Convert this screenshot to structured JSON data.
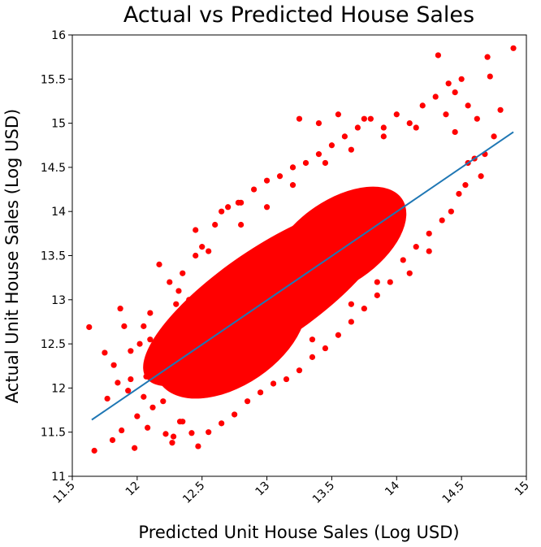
{
  "chart_data": {
    "type": "scatter",
    "title": "Actual vs Predicted House Sales",
    "xlabel": "Predicted Unit House Sales (Log USD)",
    "ylabel": "Actual Unit House Sales (Log USD)",
    "xlim": [
      11.5,
      15
    ],
    "ylim": [
      11,
      16
    ],
    "xticks": [
      "11.5",
      "12",
      "12.5",
      "13",
      "13.5",
      "14",
      "14.5",
      "15"
    ],
    "yticks": [
      "11",
      "11.5",
      "12",
      "12.5",
      "13",
      "13.5",
      "14",
      "14.5",
      "15",
      "15.5",
      "16"
    ],
    "x_tick_rotation": 45,
    "grid": false,
    "colors": {
      "points": "#ff0000",
      "fit_line": "#1f77b4"
    },
    "fit_line": {
      "x": [
        11.65,
        14.9
      ],
      "y": [
        11.64,
        14.9
      ]
    },
    "series": [
      {
        "points": [
          [
            11.63,
            12.69
          ],
          [
            11.67,
            11.29
          ],
          [
            11.75,
            12.4
          ],
          [
            11.77,
            11.88
          ],
          [
            11.81,
            11.41
          ],
          [
            11.82,
            12.26
          ],
          [
            11.85,
            12.06
          ],
          [
            11.88,
            11.52
          ],
          [
            11.9,
            12.7
          ],
          [
            11.93,
            11.97
          ],
          [
            11.95,
            12.42
          ],
          [
            11.98,
            11.32
          ],
          [
            12.0,
            11.68
          ],
          [
            12.02,
            12.5
          ],
          [
            12.05,
            11.9
          ],
          [
            12.07,
            12.13
          ],
          [
            12.08,
            11.55
          ],
          [
            12.1,
            12.85
          ],
          [
            12.12,
            11.78
          ],
          [
            12.15,
            12.3
          ],
          [
            12.17,
            13.4
          ],
          [
            12.2,
            12.65
          ],
          [
            12.22,
            11.48
          ],
          [
            12.25,
            12.2
          ],
          [
            12.27,
            11.38
          ],
          [
            12.3,
            12.95
          ],
          [
            12.32,
            13.1
          ],
          [
            12.35,
            11.62
          ],
          [
            12.4,
            13.0
          ],
          [
            12.45,
            13.79
          ],
          [
            12.47,
            11.34
          ],
          [
            12.5,
            13.6
          ],
          [
            12.55,
            11.5
          ],
          [
            12.6,
            13.85
          ],
          [
            12.65,
            11.6
          ],
          [
            12.7,
            14.05
          ],
          [
            12.75,
            11.7
          ],
          [
            12.8,
            14.1
          ],
          [
            12.85,
            11.85
          ],
          [
            12.9,
            14.25
          ],
          [
            12.95,
            11.95
          ],
          [
            13.0,
            14.35
          ],
          [
            13.05,
            12.05
          ],
          [
            13.1,
            14.4
          ],
          [
            13.15,
            12.1
          ],
          [
            13.2,
            14.5
          ],
          [
            13.25,
            12.2
          ],
          [
            13.3,
            14.55
          ],
          [
            13.35,
            12.35
          ],
          [
            13.4,
            14.65
          ],
          [
            13.45,
            12.45
          ],
          [
            13.5,
            14.75
          ],
          [
            13.55,
            12.6
          ],
          [
            13.6,
            14.85
          ],
          [
            13.65,
            12.75
          ],
          [
            13.7,
            14.95
          ],
          [
            13.75,
            12.9
          ],
          [
            13.8,
            15.05
          ],
          [
            13.85,
            13.05
          ],
          [
            13.9,
            14.95
          ],
          [
            13.95,
            13.2
          ],
          [
            14.0,
            15.1
          ],
          [
            14.05,
            13.45
          ],
          [
            14.1,
            15.0
          ],
          [
            14.15,
            13.6
          ],
          [
            14.2,
            15.2
          ],
          [
            14.25,
            13.75
          ],
          [
            14.3,
            15.3
          ],
          [
            14.35,
            13.9
          ],
          [
            14.38,
            15.1
          ],
          [
            14.4,
            15.45
          ],
          [
            14.42,
            14.0
          ],
          [
            14.45,
            15.35
          ],
          [
            14.48,
            14.2
          ],
          [
            14.5,
            15.5
          ],
          [
            14.53,
            14.3
          ],
          [
            14.55,
            15.2
          ],
          [
            14.6,
            14.6
          ],
          [
            14.62,
            15.05
          ],
          [
            14.65,
            14.4
          ],
          [
            14.7,
            15.75
          ],
          [
            14.72,
            15.53
          ],
          [
            14.75,
            14.85
          ],
          [
            14.8,
            15.15
          ],
          [
            14.9,
            15.85
          ],
          [
            14.32,
            15.77
          ],
          [
            14.68,
            14.65
          ],
          [
            13.4,
            15.0
          ],
          [
            13.55,
            15.1
          ],
          [
            13.75,
            15.05
          ],
          [
            13.25,
            15.05
          ],
          [
            12.78,
            14.1
          ],
          [
            12.65,
            14.0
          ],
          [
            12.45,
            13.5
          ],
          [
            12.58,
            12.05
          ],
          [
            13.1,
            12.4
          ],
          [
            13.35,
            12.55
          ],
          [
            13.65,
            12.95
          ],
          [
            13.85,
            13.2
          ],
          [
            14.1,
            13.3
          ],
          [
            14.25,
            13.55
          ],
          [
            12.2,
            11.85
          ],
          [
            12.33,
            11.62
          ],
          [
            12.42,
            11.49
          ],
          [
            12.28,
            11.45
          ],
          [
            11.95,
            12.1
          ],
          [
            12.1,
            12.55
          ],
          [
            12.05,
            12.7
          ],
          [
            11.87,
            12.9
          ],
          [
            12.35,
            13.3
          ],
          [
            12.25,
            13.2
          ],
          [
            12.55,
            13.55
          ],
          [
            12.8,
            13.85
          ],
          [
            13.0,
            14.05
          ],
          [
            13.2,
            14.3
          ],
          [
            13.45,
            14.55
          ],
          [
            13.65,
            14.7
          ],
          [
            13.9,
            14.85
          ],
          [
            14.15,
            14.95
          ],
          [
            14.45,
            14.9
          ],
          [
            14.55,
            14.55
          ]
        ]
      }
    ]
  }
}
